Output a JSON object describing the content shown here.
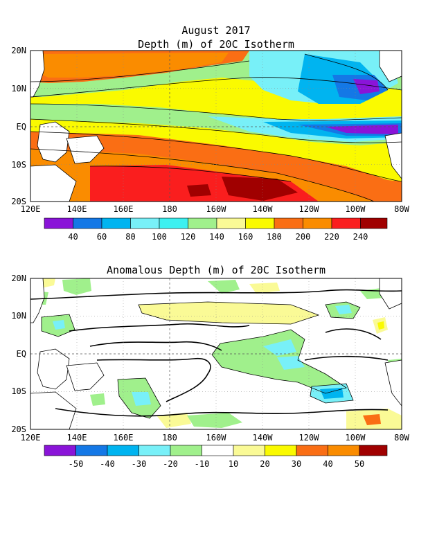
{
  "top_map": {
    "title_line1": "August 2017",
    "title_line2": "Depth (m) of 20C Isotherm",
    "lat_labels": [
      "20N",
      "10N",
      "EQ",
      "10S",
      "20S"
    ],
    "lon_labels": [
      "120E",
      "140E",
      "160E",
      "180",
      "160W",
      "140W",
      "120W",
      "100W",
      "80W"
    ],
    "colorbar": {
      "colors": [
        "#8a14d8",
        "#1478e6",
        "#00b4f0",
        "#78f0f8",
        "#3cf0f0",
        "#a0f08c",
        "#fafa96",
        "#fafa00",
        "#fa6e14",
        "#fa8c00",
        "#fa1e1e",
        "#a00000"
      ],
      "labels": [
        "40",
        "60",
        "80",
        "100",
        "120",
        "140",
        "160",
        "180",
        "200",
        "220",
        "240"
      ]
    }
  },
  "bottom_map": {
    "title": "Anomalous Depth (m) of 20C Isotherm",
    "lat_labels": [
      "20N",
      "10N",
      "EQ",
      "10S",
      "20S"
    ],
    "lon_labels": [
      "120E",
      "140E",
      "160E",
      "180",
      "160W",
      "140W",
      "120W",
      "100W",
      "80W"
    ],
    "colorbar": {
      "colors": [
        "#8a14d8",
        "#1478e6",
        "#00b4f0",
        "#78f0f8",
        "#a0f08c",
        "#ffffff",
        "#fafa96",
        "#fafa00",
        "#fa6e14",
        "#fa8c00",
        "#a00000"
      ],
      "labels": [
        "-50",
        "-40",
        "-30",
        "-20",
        "-10",
        "10",
        "20",
        "30",
        "40",
        "50"
      ]
    }
  }
}
